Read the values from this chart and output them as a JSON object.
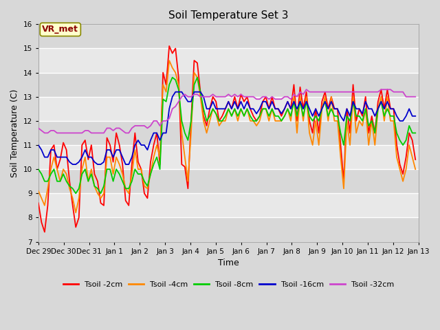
{
  "title": "Soil Temperature Set 3",
  "xlabel": "Time",
  "ylabel": "Soil Temperature (C)",
  "ylim": [
    7.0,
    16.0
  ],
  "yticks": [
    7.0,
    8.0,
    9.0,
    10.0,
    11.0,
    12.0,
    13.0,
    14.0,
    15.0,
    16.0
  ],
  "bg_color": "#d8d8d8",
  "plot_bg_color_light": "#e8e8e8",
  "plot_bg_color_dark": "#d0d0d0",
  "grid_color": "#ffffff",
  "series_colors": [
    "#ff0000",
    "#ff8800",
    "#00cc00",
    "#0000cc",
    "#cc44cc"
  ],
  "series_labels": [
    "Tsoil -2cm",
    "Tsoil -4cm",
    "Tsoil -8cm",
    "Tsoil -16cm",
    "Tsoil -32cm"
  ],
  "vr_met_label": "VR_met",
  "start_date": "2023-12-29",
  "t2cm": [
    8.6,
    7.8,
    7.4,
    8.5,
    10.8,
    11.0,
    10.0,
    10.4,
    11.1,
    10.8,
    9.5,
    8.5,
    7.6,
    8.0,
    11.0,
    11.2,
    10.4,
    11.0,
    9.8,
    9.5,
    8.6,
    8.5,
    11.3,
    11.0,
    10.3,
    11.5,
    11.0,
    10.2,
    8.7,
    8.5,
    10.2,
    11.5,
    10.3,
    10.0,
    9.0,
    8.8,
    10.3,
    11.0,
    11.5,
    10.2,
    14.0,
    13.5,
    15.1,
    14.8,
    15.0,
    13.8,
    10.2,
    10.1,
    9.2,
    12.0,
    14.5,
    14.4,
    13.2,
    12.2,
    11.8,
    12.5,
    13.0,
    12.8,
    12.0,
    12.2,
    12.5,
    12.8,
    12.5,
    13.0,
    12.5,
    13.1,
    12.8,
    13.0,
    12.5,
    12.2,
    12.0,
    12.2,
    12.8,
    13.0,
    12.5,
    13.0,
    12.5,
    12.5,
    12.2,
    12.5,
    12.8,
    12.5,
    13.5,
    12.0,
    13.4,
    12.5,
    13.2,
    12.0,
    11.5,
    12.5,
    11.5,
    12.8,
    13.2,
    12.5,
    13.0,
    12.5,
    12.5,
    11.0,
    9.5,
    12.5,
    11.5,
    13.5,
    12.0,
    12.5,
    12.2,
    13.0,
    11.5,
    12.2,
    11.5,
    12.8,
    13.3,
    12.5,
    13.3,
    12.5,
    12.5,
    11.0,
    10.2,
    9.8,
    10.5,
    11.5,
    11.2,
    10.4
  ],
  "t4cm": [
    9.1,
    8.8,
    8.5,
    9.2,
    10.0,
    10.5,
    10.0,
    9.5,
    10.0,
    9.8,
    9.2,
    8.8,
    8.2,
    8.8,
    10.0,
    10.5,
    9.5,
    10.0,
    9.3,
    9.0,
    8.8,
    9.0,
    10.5,
    10.5,
    9.8,
    10.5,
    10.2,
    9.8,
    9.2,
    9.0,
    9.8,
    10.8,
    10.0,
    10.0,
    9.3,
    9.2,
    9.8,
    10.5,
    11.0,
    10.5,
    13.5,
    13.2,
    14.5,
    14.2,
    14.0,
    13.5,
    11.5,
    10.5,
    9.5,
    11.5,
    14.0,
    13.8,
    13.0,
    12.0,
    11.5,
    12.0,
    12.5,
    12.3,
    11.8,
    12.0,
    12.0,
    12.5,
    12.2,
    12.5,
    12.0,
    12.5,
    12.2,
    12.5,
    12.0,
    12.0,
    11.8,
    12.0,
    12.5,
    12.5,
    12.0,
    12.5,
    12.0,
    12.0,
    12.0,
    12.2,
    12.5,
    12.0,
    13.0,
    11.5,
    13.0,
    12.0,
    13.0,
    11.5,
    11.0,
    12.0,
    11.0,
    12.5,
    13.0,
    12.0,
    13.0,
    12.0,
    12.0,
    10.5,
    9.2,
    12.0,
    11.0,
    13.0,
    11.5,
    12.0,
    11.8,
    12.5,
    11.0,
    12.0,
    11.0,
    12.5,
    13.0,
    12.0,
    13.0,
    12.0,
    12.0,
    10.5,
    10.0,
    9.5,
    10.0,
    11.0,
    10.5,
    10.0
  ],
  "t8cm": [
    10.0,
    9.8,
    9.5,
    9.5,
    9.8,
    10.0,
    9.5,
    9.5,
    9.8,
    9.5,
    9.3,
    9.2,
    9.0,
    9.2,
    9.8,
    10.0,
    9.5,
    9.8,
    9.3,
    9.2,
    9.0,
    9.3,
    10.0,
    10.0,
    9.5,
    10.0,
    9.8,
    9.5,
    9.2,
    9.2,
    9.5,
    10.0,
    9.8,
    9.8,
    9.5,
    9.3,
    9.8,
    10.2,
    10.5,
    10.0,
    12.9,
    12.8,
    13.5,
    13.8,
    13.7,
    13.3,
    12.0,
    11.5,
    11.2,
    12.0,
    13.5,
    13.8,
    13.2,
    12.5,
    12.0,
    12.2,
    12.5,
    12.3,
    12.0,
    12.0,
    12.2,
    12.5,
    12.2,
    12.5,
    12.2,
    12.5,
    12.2,
    12.5,
    12.2,
    12.0,
    12.0,
    12.2,
    12.5,
    12.5,
    12.2,
    12.5,
    12.2,
    12.2,
    12.0,
    12.2,
    12.5,
    12.2,
    12.8,
    12.2,
    12.8,
    12.2,
    12.8,
    12.2,
    12.0,
    12.2,
    12.0,
    12.5,
    12.8,
    12.2,
    12.5,
    12.2,
    12.2,
    11.5,
    11.0,
    12.2,
    12.0,
    12.8,
    12.2,
    12.2,
    12.0,
    12.5,
    11.8,
    12.0,
    11.5,
    12.5,
    12.8,
    12.2,
    12.5,
    12.2,
    12.2,
    11.5,
    11.2,
    11.0,
    11.2,
    11.8,
    11.5,
    11.5
  ],
  "t16cm": [
    11.0,
    10.8,
    10.5,
    10.5,
    10.8,
    10.8,
    10.5,
    10.5,
    10.5,
    10.5,
    10.3,
    10.2,
    10.2,
    10.3,
    10.5,
    10.8,
    10.5,
    10.5,
    10.3,
    10.2,
    10.2,
    10.3,
    10.8,
    10.8,
    10.5,
    10.8,
    10.8,
    10.5,
    10.2,
    10.2,
    10.5,
    11.0,
    11.2,
    11.0,
    11.0,
    10.8,
    11.2,
    11.5,
    11.5,
    11.2,
    11.5,
    11.5,
    12.5,
    13.0,
    13.2,
    13.2,
    13.2,
    13.0,
    12.8,
    12.8,
    13.2,
    13.2,
    13.2,
    13.0,
    12.5,
    12.5,
    12.8,
    12.5,
    12.5,
    12.5,
    12.5,
    12.8,
    12.5,
    12.8,
    12.5,
    12.8,
    12.5,
    12.8,
    12.5,
    12.5,
    12.3,
    12.5,
    12.8,
    12.8,
    12.5,
    12.8,
    12.5,
    12.5,
    12.3,
    12.5,
    12.8,
    12.5,
    12.8,
    12.5,
    12.8,
    12.5,
    12.8,
    12.5,
    12.2,
    12.5,
    12.2,
    12.5,
    12.8,
    12.5,
    12.8,
    12.5,
    12.5,
    12.2,
    12.0,
    12.5,
    12.2,
    12.8,
    12.5,
    12.5,
    12.3,
    12.8,
    12.5,
    12.5,
    12.2,
    12.5,
    12.8,
    12.5,
    12.8,
    12.5,
    12.5,
    12.2,
    12.0,
    12.0,
    12.2,
    12.5,
    12.2,
    12.2
  ],
  "t32cm": [
    11.7,
    11.6,
    11.5,
    11.5,
    11.6,
    11.6,
    11.5,
    11.5,
    11.5,
    11.5,
    11.5,
    11.5,
    11.5,
    11.5,
    11.5,
    11.6,
    11.6,
    11.5,
    11.5,
    11.5,
    11.5,
    11.5,
    11.7,
    11.7,
    11.6,
    11.7,
    11.7,
    11.6,
    11.5,
    11.5,
    11.7,
    11.8,
    11.8,
    11.8,
    11.8,
    11.7,
    11.8,
    12.0,
    12.0,
    11.8,
    12.0,
    12.0,
    12.1,
    12.5,
    12.6,
    12.8,
    13.0,
    13.1,
    13.0,
    13.0,
    13.1,
    13.1,
    13.0,
    13.0,
    13.0,
    13.0,
    13.1,
    13.0,
    13.0,
    13.0,
    13.0,
    13.1,
    13.0,
    13.1,
    13.0,
    13.1,
    13.0,
    13.0,
    13.0,
    13.0,
    12.9,
    12.9,
    13.0,
    13.0,
    12.9,
    13.0,
    12.9,
    12.9,
    12.9,
    13.0,
    13.0,
    12.9,
    13.1,
    13.0,
    13.2,
    13.1,
    13.3,
    13.2,
    13.2,
    13.2,
    13.2,
    13.2,
    13.2,
    13.2,
    13.2,
    13.2,
    13.2,
    13.2,
    13.2,
    13.2,
    13.2,
    13.2,
    13.2,
    13.2,
    13.2,
    13.2,
    13.2,
    13.2,
    13.2,
    13.2,
    13.3,
    13.3,
    13.3,
    13.3,
    13.2,
    13.2,
    13.2,
    13.2,
    13.0,
    13.0,
    13.0,
    13.0
  ]
}
